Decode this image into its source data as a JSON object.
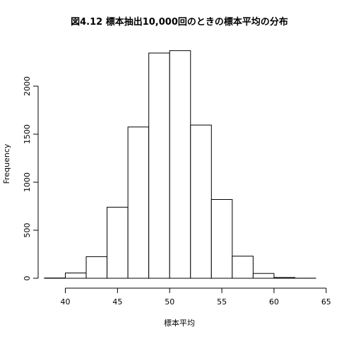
{
  "chart_data": {
    "type": "bar",
    "title": "図4.12 標本抽出10,000回のときの標本平均の分布",
    "xlabel": "標本平均",
    "ylabel": "Frequency",
    "bins": [
      {
        "x0": 38,
        "x1": 40,
        "value": 3
      },
      {
        "x0": 40,
        "x1": 42,
        "value": 55
      },
      {
        "x0": 42,
        "x1": 44,
        "value": 225
      },
      {
        "x0": 44,
        "x1": 46,
        "value": 740
      },
      {
        "x0": 46,
        "x1": 48,
        "value": 1575
      },
      {
        "x0": 48,
        "x1": 50,
        "value": 2345
      },
      {
        "x0": 50,
        "x1": 52,
        "value": 2370
      },
      {
        "x0": 52,
        "x1": 54,
        "value": 1595
      },
      {
        "x0": 54,
        "x1": 56,
        "value": 820
      },
      {
        "x0": 56,
        "x1": 58,
        "value": 230
      },
      {
        "x0": 58,
        "x1": 60,
        "value": 50
      },
      {
        "x0": 60,
        "x1": 62,
        "value": 8
      },
      {
        "x0": 62,
        "x1": 64,
        "value": 1
      }
    ],
    "xlim": [
      37.8,
      64.2
    ],
    "ylim": [
      0,
      2500
    ],
    "x_ticks": [
      "40",
      "45",
      "50",
      "55",
      "60",
      "65"
    ],
    "y_ticks": [
      "0",
      "500",
      "1000",
      "1500",
      "2000"
    ],
    "bar_fill": "#ffffff",
    "bar_stroke": "#000000",
    "grid": false
  }
}
